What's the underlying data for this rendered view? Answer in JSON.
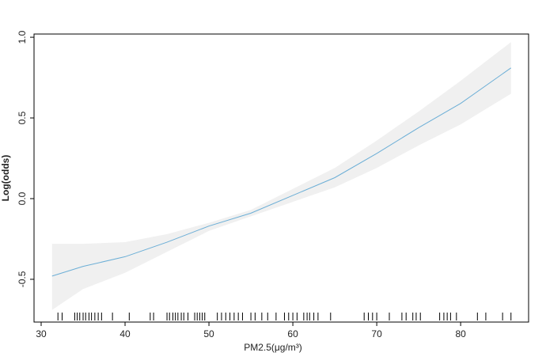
{
  "chart_data": {
    "type": "line",
    "x_label": "PM2.5(μg/m³)",
    "y_label": "Log(odds)",
    "x": [
      31.3,
      35,
      40,
      45,
      50,
      55,
      60,
      65,
      70,
      75,
      80,
      86
    ],
    "values": [
      -0.48,
      -0.42,
      -0.36,
      -0.27,
      -0.17,
      -0.09,
      0.02,
      0.13,
      0.28,
      0.44,
      0.59,
      0.81
    ],
    "lower": [
      -0.69,
      -0.56,
      -0.46,
      -0.33,
      -0.2,
      -0.11,
      -0.02,
      0.07,
      0.19,
      0.33,
      0.46,
      0.65
    ],
    "upper": [
      -0.28,
      -0.28,
      -0.27,
      -0.22,
      -0.15,
      -0.07,
      0.06,
      0.19,
      0.36,
      0.54,
      0.73,
      0.97
    ],
    "color": "#6baed6",
    "band_color": "#f0f0f0",
    "rug": [
      32,
      32.5,
      34,
      34.3,
      34.6,
      35,
      35.3,
      35.7,
      36,
      36.4,
      36.8,
      37.2,
      38.5,
      40.5,
      43,
      43.4,
      45,
      45.3,
      45.7,
      46,
      46.3,
      46.7,
      47,
      47.5,
      48.3,
      48.6,
      48.9,
      49.2,
      49.5,
      51,
      51.5,
      52,
      52.5,
      53,
      53.5,
      54,
      55,
      55.5,
      56.3,
      57,
      58,
      59,
      59.5,
      60,
      60.5,
      61.3,
      61.7,
      62,
      62.5,
      63,
      64.5,
      68.5,
      69,
      69.5,
      70,
      71.5,
      73,
      73.5,
      74.3,
      74.7,
      75.2,
      77.5,
      78,
      78.4,
      78.8,
      79.5,
      82,
      83,
      85,
      86
    ],
    "xlim": [
      29.15,
      88.1
    ],
    "ylim": [
      -0.765,
      1.02
    ],
    "xticks": [
      30,
      40,
      50,
      60,
      70,
      80
    ],
    "yticks": [
      {
        "value": 1,
        "label": "1.0"
      },
      0.5,
      {
        "value": 0,
        "label": "0.0"
      },
      -0.5
    ]
  }
}
